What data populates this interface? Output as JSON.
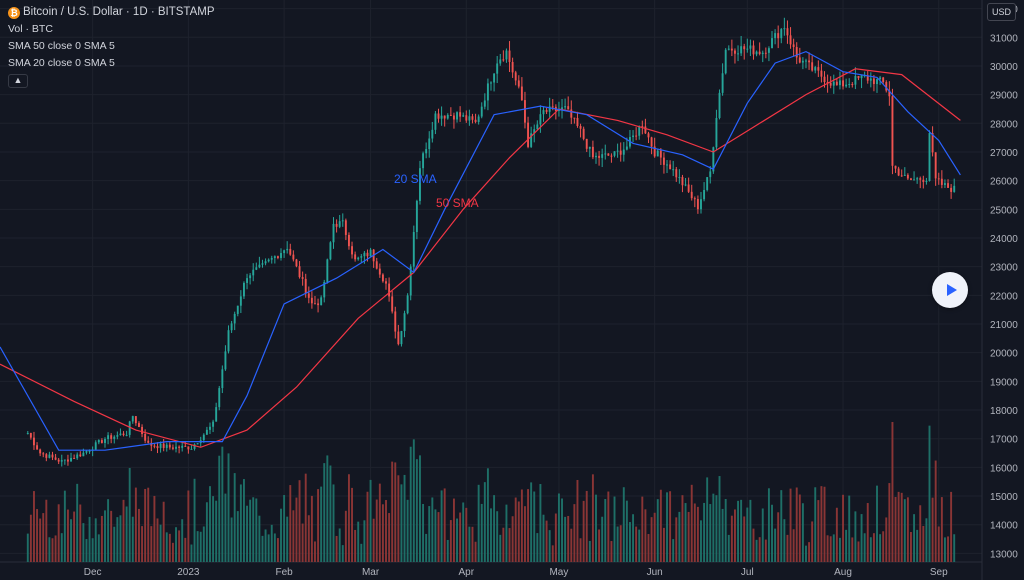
{
  "header": {
    "symbol": "Bitcoin / U.S. Dollar · 1D · BITSTAMP",
    "volume_label": "Vol · BTC",
    "sma1_label": "SMA 50 close 0 SMA 5",
    "sma2_label": "SMA 20 close 0 SMA 5",
    "currency": "USD"
  },
  "icons": {
    "symbol_icon": "bitcoin-icon",
    "collapse": "chevron-up-icon",
    "play": "play-icon"
  },
  "colors": {
    "up": "#26a69a",
    "down": "#ef5350",
    "sma20": "#2962ff",
    "sma50": "#f23645",
    "vol_up": "#1e6f67",
    "vol_down": "#8a3535"
  },
  "annotations": {
    "sma20": "20 SMA",
    "sma50": "50 SMA"
  },
  "chart_data": {
    "type": "candlestick",
    "title": "Bitcoin / U.S. Dollar · 1D · BITSTAMP",
    "y_ticks": [
      13000,
      14000,
      15000,
      16000,
      17000,
      18000,
      19000,
      20000,
      21000,
      22000,
      23000,
      24000,
      25000,
      26000,
      27000,
      28000,
      29000,
      30000,
      31000,
      32000
    ],
    "ylim": [
      12700,
      32300
    ],
    "x_ticks": [
      "Dec",
      "2023",
      "Feb",
      "Mar",
      "Apr",
      "May",
      "Jun",
      "Jul",
      "Aug",
      "Sep"
    ],
    "close_path": [
      [
        "2022-11-10",
        17200
      ],
      [
        "2022-11-14",
        16500
      ],
      [
        "2022-11-21",
        16200
      ],
      [
        "2022-11-28",
        16500
      ],
      [
        "2022-12-05",
        17000
      ],
      [
        "2022-12-12",
        17200
      ],
      [
        "2022-12-14",
        17800
      ],
      [
        "2022-12-19",
        16800
      ],
      [
        "2022-12-26",
        16700
      ],
      [
        "2023-01-02",
        16700
      ],
      [
        "2023-01-09",
        17500
      ],
      [
        "2023-01-14",
        20700
      ],
      [
        "2023-01-20",
        22700
      ],
      [
        "2023-01-25",
        23000
      ],
      [
        "2023-02-02",
        23700
      ],
      [
        "2023-02-10",
        21700
      ],
      [
        "2023-02-13",
        21800
      ],
      [
        "2023-02-17",
        24500
      ],
      [
        "2023-02-20",
        24500
      ],
      [
        "2023-02-24",
        23200
      ],
      [
        "2023-03-01",
        23500
      ],
      [
        "2023-03-06",
        22400
      ],
      [
        "2023-03-10",
        20300
      ],
      [
        "2023-03-13",
        22000
      ],
      [
        "2023-03-17",
        26500
      ],
      [
        "2023-03-22",
        28300
      ],
      [
        "2023-03-29",
        28300
      ],
      [
        "2023-04-04",
        28000
      ],
      [
        "2023-04-11",
        30200
      ],
      [
        "2023-04-14",
        30500
      ],
      [
        "2023-04-19",
        28800
      ],
      [
        "2023-04-21",
        27300
      ],
      [
        "2023-04-26",
        28400
      ],
      [
        "2023-05-03",
        28500
      ],
      [
        "2023-05-08",
        27700
      ],
      [
        "2023-05-12",
        26800
      ],
      [
        "2023-05-19",
        26900
      ],
      [
        "2023-05-23",
        27200
      ],
      [
        "2023-05-28",
        28000
      ],
      [
        "2023-06-01",
        27000
      ],
      [
        "2023-06-06",
        26500
      ],
      [
        "2023-06-10",
        25900
      ],
      [
        "2023-06-15",
        25100
      ],
      [
        "2023-06-19",
        26300
      ],
      [
        "2023-06-21",
        28300
      ],
      [
        "2023-06-24",
        30600
      ],
      [
        "2023-06-30",
        30600
      ],
      [
        "2023-07-06",
        30500
      ],
      [
        "2023-07-13",
        31400
      ],
      [
        "2023-07-17",
        30300
      ],
      [
        "2023-07-23",
        29800
      ],
      [
        "2023-07-30",
        29300
      ],
      [
        "2023-08-08",
        29600
      ],
      [
        "2023-08-14",
        29400
      ],
      [
        "2023-08-16",
        29000
      ],
      [
        "2023-08-17",
        26500
      ],
      [
        "2023-08-22",
        26000
      ],
      [
        "2023-08-28",
        26100
      ],
      [
        "2023-08-29",
        27700
      ],
      [
        "2023-08-31",
        26000
      ],
      [
        "2023-09-03",
        25800
      ],
      [
        "2023-09-06",
        25700
      ]
    ],
    "sma20_path": [
      [
        "2022-11-01",
        20200
      ],
      [
        "2022-11-20",
        16600
      ],
      [
        "2022-12-05",
        16600
      ],
      [
        "2022-12-25",
        16900
      ],
      [
        "2023-01-12",
        16900
      ],
      [
        "2023-01-20",
        18500
      ],
      [
        "2023-02-01",
        21700
      ],
      [
        "2023-02-18",
        22600
      ],
      [
        "2023-03-05",
        23600
      ],
      [
        "2023-03-15",
        22800
      ],
      [
        "2023-03-25",
        25000
      ],
      [
        "2023-04-10",
        28300
      ],
      [
        "2023-04-25",
        28600
      ],
      [
        "2023-05-10",
        28300
      ],
      [
        "2023-05-25",
        27300
      ],
      [
        "2023-06-10",
        26900
      ],
      [
        "2023-06-20",
        26400
      ],
      [
        "2023-07-01",
        28700
      ],
      [
        "2023-07-10",
        30100
      ],
      [
        "2023-07-20",
        30500
      ],
      [
        "2023-08-01",
        29800
      ],
      [
        "2023-08-12",
        29600
      ],
      [
        "2023-08-22",
        28400
      ],
      [
        "2023-09-01",
        27400
      ],
      [
        "2023-09-08",
        26200
      ]
    ],
    "sma50_path": [
      [
        "2022-11-01",
        19600
      ],
      [
        "2022-11-25",
        18300
      ],
      [
        "2022-12-15",
        17300
      ],
      [
        "2023-01-05",
        16700
      ],
      [
        "2023-01-20",
        17300
      ],
      [
        "2023-02-05",
        18800
      ],
      [
        "2023-02-25",
        21200
      ],
      [
        "2023-03-15",
        22800
      ],
      [
        "2023-03-31",
        25000
      ],
      [
        "2023-04-15",
        26800
      ],
      [
        "2023-05-01",
        28500
      ],
      [
        "2023-05-20",
        28100
      ],
      [
        "2023-06-05",
        27600
      ],
      [
        "2023-06-20",
        27000
      ],
      [
        "2023-07-05",
        28000
      ],
      [
        "2023-07-20",
        29000
      ],
      [
        "2023-08-05",
        29900
      ],
      [
        "2023-08-20",
        29700
      ],
      [
        "2023-09-08",
        28100
      ]
    ],
    "legend": [
      "SMA 50 close 0 SMA 5",
      "SMA 20 close 0 SMA 5"
    ],
    "grid": true
  }
}
